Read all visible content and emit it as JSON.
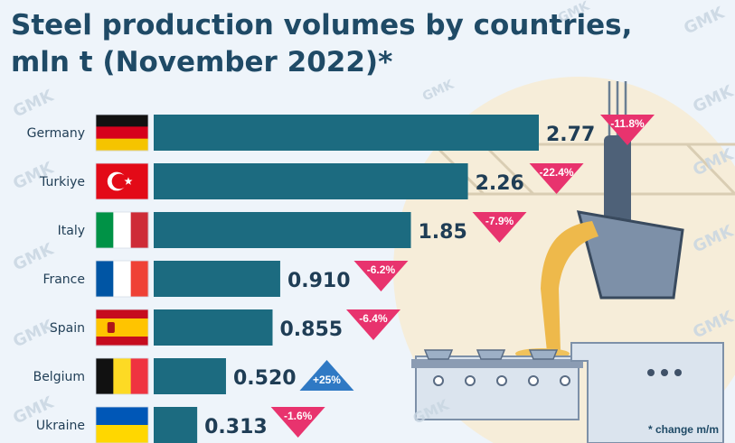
{
  "chart_data": {
    "type": "bar",
    "title_lines": [
      "Steel production volumes by countries,",
      "mln t (November 2022)*"
    ],
    "categories": [
      "Germany",
      "Turkiye",
      "Italy",
      "France",
      "Spain",
      "Belgium",
      "Ukraine"
    ],
    "values": [
      2.77,
      2.26,
      1.85,
      0.91,
      0.855,
      0.52,
      0.313
    ],
    "value_labels": [
      "2.77",
      "2.26",
      "1.85",
      "0.910",
      "0.855",
      "0.520",
      "0.313"
    ],
    "changes": [
      "-11.8%",
      "-22.4%",
      "-7.9%",
      "-6.2%",
      "-6.4%",
      "+25%",
      "-1.6%"
    ],
    "change_direction": [
      "down",
      "down",
      "down",
      "down",
      "down",
      "up",
      "down"
    ],
    "xlim": [
      0,
      2.77
    ],
    "orientation": "horizontal",
    "grid": false,
    "colors": {
      "bar": "#1c6b80",
      "down": "#e8336e",
      "up": "#2f79c4",
      "label": "#1f3d55"
    }
  },
  "footnote": "* change m/m",
  "watermark": "GMK"
}
